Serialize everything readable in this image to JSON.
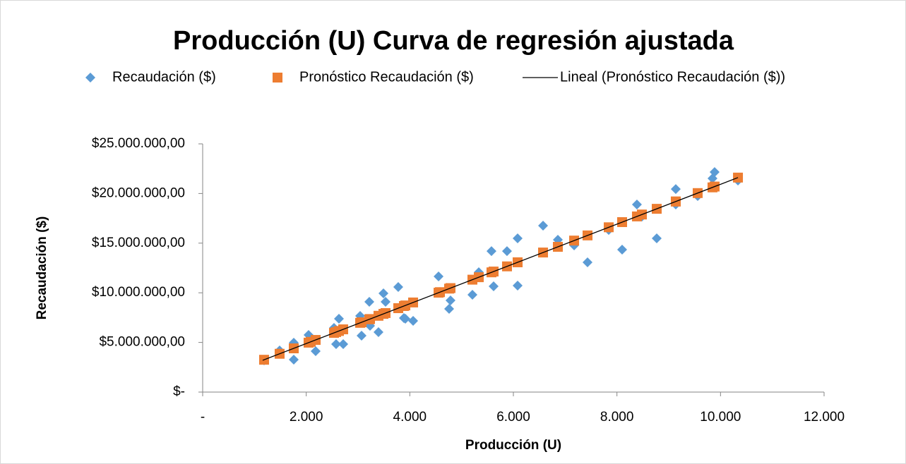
{
  "chart_data": {
    "type": "scatter",
    "title": "Producción (U) Curva de regresión ajustada",
    "x_label": "Producción (U)",
    "y_label": "Recaudación ($)",
    "xlim": [
      0,
      12000
    ],
    "ylim": [
      0,
      25000000
    ],
    "xticks": [
      {
        "value": 0,
        "label": "-"
      },
      {
        "value": 2000,
        "label": "2.000"
      },
      {
        "value": 4000,
        "label": "4.000"
      },
      {
        "value": 6000,
        "label": "6.000"
      },
      {
        "value": 8000,
        "label": "8.000"
      },
      {
        "value": 10000,
        "label": "10.000"
      },
      {
        "value": 12000,
        "label": "12.000"
      }
    ],
    "yticks": [
      {
        "value": 0,
        "label": "$-"
      },
      {
        "value": 5000000,
        "label": "$5.000.000,00"
      },
      {
        "value": 10000000,
        "label": "$10.000.000,00"
      },
      {
        "value": 15000000,
        "label": "$15.000.000,00"
      },
      {
        "value": 20000000,
        "label": "$20.000.000,00"
      },
      {
        "value": 25000000,
        "label": "$25.000.000,00"
      }
    ],
    "grid": false,
    "legend": "top",
    "series": [
      {
        "name": "Recaudación ($)",
        "color": "#5b9bd5",
        "marker": "diamond",
        "x": [
          1186,
          1486,
          1759,
          1759,
          2045,
          2086,
          2182,
          2536,
          2577,
          2632,
          2714,
          3041,
          3068,
          3218,
          3232,
          3395,
          3491,
          3532,
          3777,
          3886,
          3914,
          4064,
          4555,
          4582,
          4759,
          4786,
          5209,
          5332,
          5577,
          5618,
          5877,
          6082,
          6082,
          6573,
          6859,
          7173,
          7432,
          7841,
          8100,
          8386,
          8482,
          8768,
          9136,
          9136,
          9559,
          9845,
          9886,
          10337
        ],
        "values": [
          3200000,
          4190000,
          4970000,
          3270000,
          5750000,
          5040000,
          4120000,
          6460000,
          4830000,
          7390000,
          4830000,
          7670000,
          5680000,
          9090000,
          6680000,
          6040000,
          9940000,
          9090000,
          10580000,
          7460000,
          7390000,
          7170000,
          11650000,
          10080000,
          8380000,
          9230000,
          9800000,
          12070000,
          14200000,
          10650000,
          14200000,
          10720000,
          15480000,
          16760000,
          15340000,
          14770000,
          13070000,
          16330000,
          14350000,
          18890000,
          17680000,
          15480000,
          18890000,
          20450000,
          19740000,
          21520000,
          22160000,
          21310000
        ]
      },
      {
        "name": "Pronóstico Recaudación ($)",
        "color": "#ed7d31",
        "marker": "square",
        "x": [
          1186,
          1486,
          1759,
          1759,
          2045,
          2086,
          2182,
          2536,
          2577,
          2632,
          2714,
          3041,
          3068,
          3218,
          3232,
          3395,
          3491,
          3532,
          3777,
          3886,
          3914,
          4064,
          4555,
          4582,
          4759,
          4786,
          5209,
          5332,
          5577,
          5618,
          5877,
          6082,
          6082,
          6573,
          6859,
          7173,
          7432,
          7841,
          8100,
          8386,
          8482,
          8768,
          9136,
          9136,
          9559,
          9845,
          9886,
          10337
        ],
        "values": [
          3255000,
          3856000,
          4404000,
          4404000,
          4977000,
          5059000,
          5252000,
          5962000,
          6044000,
          6154000,
          6319000,
          6974000,
          7028000,
          7329000,
          7357000,
          7684000,
          7876000,
          7959000,
          8450000,
          8668000,
          8725000,
          9025000,
          10010000,
          10064000,
          10419000,
          10473000,
          11321000,
          11568000,
          12059000,
          12141000,
          12660000,
          13071000,
          13071000,
          14056000,
          14629000,
          15259000,
          15778000,
          16598000,
          17118000,
          17691000,
          17884000,
          18457000,
          19194000,
          19194000,
          20043000,
          20616000,
          20699000,
          21603000
        ]
      },
      {
        "name": "Lineal (Pronóstico Recaudación ($))",
        "color": "#000000",
        "type": "line",
        "x": [
          1159,
          10337
        ],
        "values": [
          3200000,
          21603000
        ]
      }
    ]
  }
}
